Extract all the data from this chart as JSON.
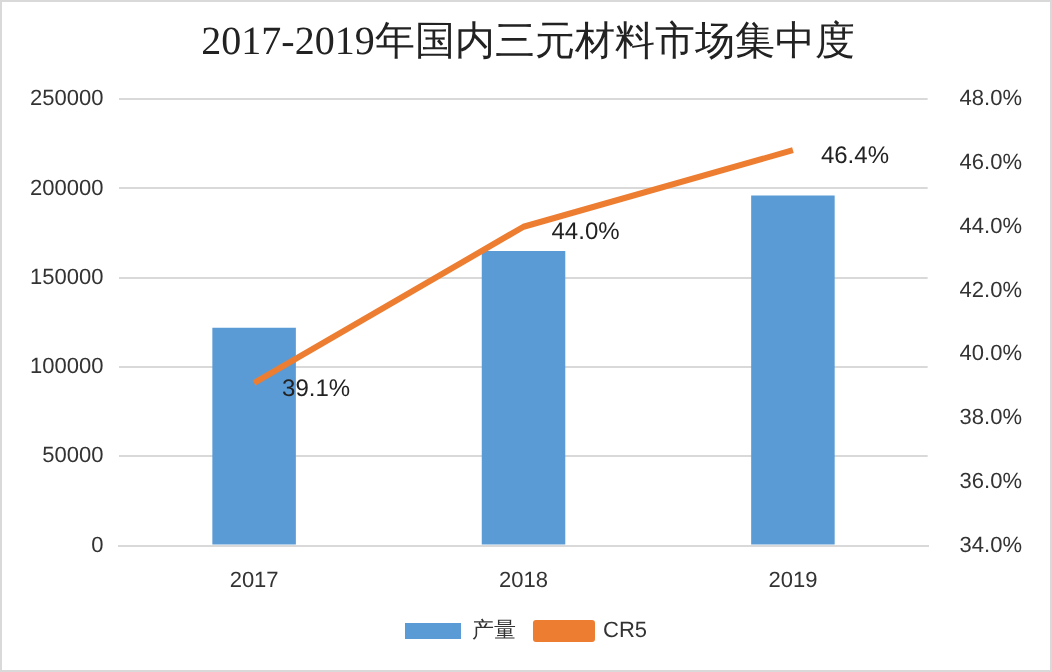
{
  "chart_data": {
    "type": "bar",
    "title": "2017-2019年国内三元材料市场集中度",
    "categories": [
      "2017",
      "2018",
      "2019"
    ],
    "series": [
      {
        "name": "产量",
        "color": "#5b9bd5",
        "values": [
          122000,
          165000,
          196000
        ]
      },
      {
        "name": "CR5",
        "type": "line",
        "axis": "y2",
        "color": "#ed7d31",
        "values": [
          39.1,
          44.0,
          46.4
        ],
        "value_labels": [
          "39.1%",
          "44.0%",
          "46.4%"
        ]
      }
    ],
    "ylim": [
      0,
      250000
    ],
    "yticks": [
      0,
      50000,
      100000,
      150000,
      200000,
      250000
    ],
    "y2lim": [
      34,
      48
    ],
    "y2ticks": [
      {
        "value": 34,
        "label": "34.0%"
      },
      {
        "value": 36,
        "label": "36.0%"
      },
      {
        "value": 38,
        "label": "38.0%"
      },
      {
        "value": 40,
        "label": "40.0%"
      },
      {
        "value": 42,
        "label": "42.0%"
      },
      {
        "value": 44,
        "label": "44.0%"
      },
      {
        "value": 46,
        "label": "46.0%"
      },
      {
        "value": 48,
        "label": "48.0%"
      }
    ],
    "grid": "y",
    "legend": "bottom",
    "marker": "none"
  }
}
